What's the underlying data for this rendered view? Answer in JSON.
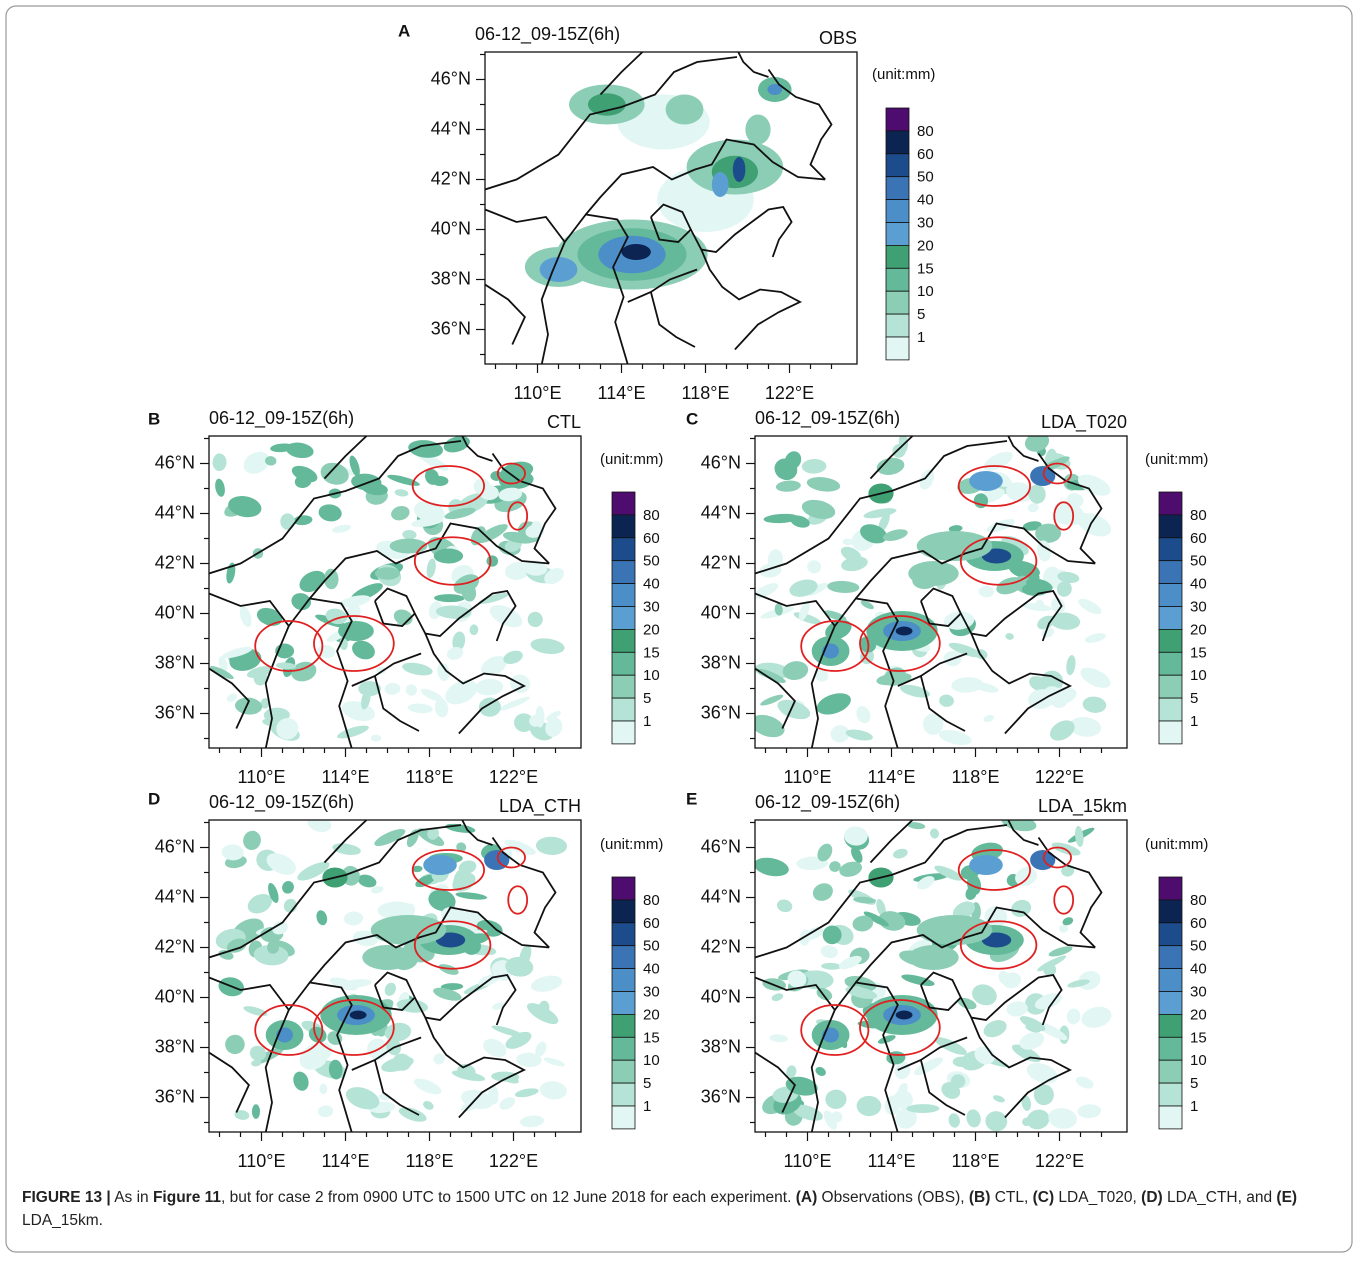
{
  "panels": [
    {
      "letter": "A",
      "time": "06-12_09-15Z(6h)",
      "experiment": "OBS",
      "lat_labels": [
        "46°N",
        "44°N",
        "42°N",
        "40°N",
        "38°N",
        "36°N"
      ],
      "lon_labels": [
        "110°E",
        "114°E",
        "118°E",
        "122°E"
      ],
      "colorbar": {
        "unit": "(unit:mm)",
        "labels": [
          80,
          60,
          50,
          40,
          30,
          20,
          15,
          10,
          5,
          1
        ]
      }
    },
    {
      "letter": "B",
      "time": "06-12_09-15Z(6h)",
      "experiment": "CTL",
      "lat_labels": [
        "46°N",
        "44°N",
        "42°N",
        "40°N",
        "38°N",
        "36°N"
      ],
      "lon_labels": [
        "110°E",
        "114°E",
        "118°E",
        "122°E"
      ],
      "colorbar": {
        "unit": "(unit:mm)",
        "labels": [
          80,
          60,
          50,
          40,
          30,
          20,
          15,
          10,
          5,
          1
        ]
      }
    },
    {
      "letter": "C",
      "time": "06-12_09-15Z(6h)",
      "experiment": "LDA_T020",
      "lat_labels": [
        "46°N",
        "44°N",
        "42°N",
        "40°N",
        "38°N",
        "36°N"
      ],
      "lon_labels": [
        "110°E",
        "114°E",
        "118°E",
        "122°E"
      ],
      "colorbar": {
        "unit": "(unit:mm)",
        "labels": [
          80,
          60,
          50,
          40,
          30,
          20,
          15,
          10,
          5,
          1
        ]
      }
    },
    {
      "letter": "D",
      "time": "06-12_09-15Z(6h)",
      "experiment": "LDA_CTH",
      "lat_labels": [
        "46°N",
        "44°N",
        "42°N",
        "40°N",
        "38°N",
        "36°N"
      ],
      "lon_labels": [
        "110°E",
        "114°E",
        "118°E",
        "122°E"
      ],
      "colorbar": {
        "unit": "(unit:mm)",
        "labels": [
          80,
          60,
          50,
          40,
          30,
          20,
          15,
          10,
          5,
          1
        ]
      }
    },
    {
      "letter": "E",
      "time": "06-12_09-15Z(6h)",
      "experiment": "LDA_15km",
      "lat_labels": [
        "46°N",
        "44°N",
        "42°N",
        "40°N",
        "38°N",
        "36°N"
      ],
      "lon_labels": [
        "110°E",
        "114°E",
        "118°E",
        "122°E"
      ],
      "colorbar": {
        "unit": "(unit:mm)",
        "labels": [
          80,
          60,
          50,
          40,
          30,
          20,
          15,
          10,
          5,
          1
        ]
      }
    }
  ],
  "caption": [
    {
      "text": "FIGURE 13 |",
      "bold": true
    },
    {
      "text": " As in ",
      "bold": false
    },
    {
      "text": "Figure 11",
      "bold": true
    },
    {
      "text": ", but for case 2 from 0900 UTC to 1500 UTC on 12 June 2018 for each experiment. ",
      "bold": false
    },
    {
      "text": "(A)",
      "bold": true
    },
    {
      "text": " Observations (OBS), ",
      "bold": false
    },
    {
      "text": "(B)",
      "bold": true
    },
    {
      "text": " CTL, ",
      "bold": false
    },
    {
      "text": "(C)",
      "bold": true
    },
    {
      "text": " LDA_T020, ",
      "bold": false
    },
    {
      "text": "(D)",
      "bold": true
    },
    {
      "text": " LDA_CTH, and ",
      "bold": false
    },
    {
      "text": "(E)",
      "bold": true
    },
    {
      "text": " LDA_15km.",
      "bold": false
    }
  ]
}
